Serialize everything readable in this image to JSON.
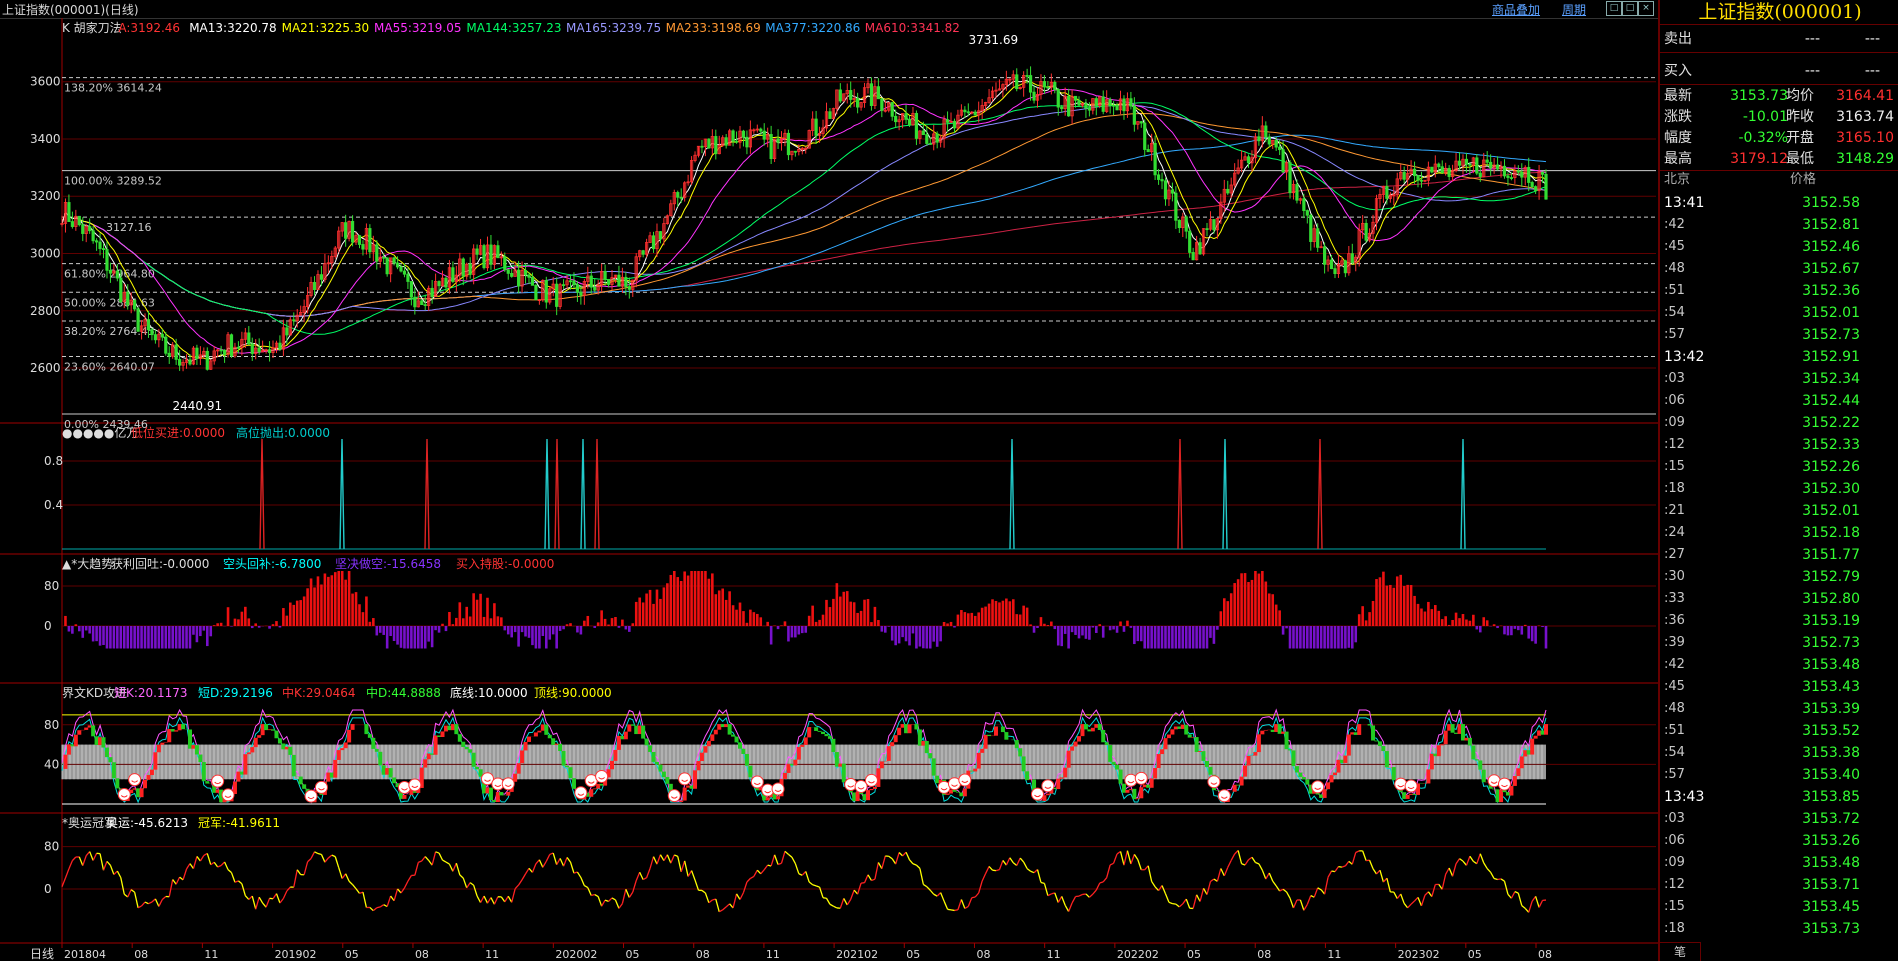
{
  "window": {
    "title": "上证指数(000001)(日线)",
    "links": [
      "商品叠加",
      "周期"
    ],
    "win_buttons": [
      "□",
      "□",
      "×"
    ]
  },
  "colors": {
    "up": "#ff3030",
    "down": "#33dd33",
    "grid": "#600000",
    "ma13": "#ffffff",
    "ma21": "#ffff00",
    "ma55": "#ff33ff",
    "ma144": "#00ff66",
    "ma165": "#8888ff",
    "ma233": "#ff9933",
    "ma377": "#33aaff",
    "ma610": "#cc2244"
  },
  "main_panel": {
    "legend": [
      {
        "text": "K  胡家刀法",
        "color": "#dddddd"
      },
      {
        "text": "A:3192.46",
        "color": "#ff3333"
      },
      {
        "text": "MA13:3220.78",
        "color": "#ffffff"
      },
      {
        "text": "MA21:3225.30",
        "color": "#ffff00"
      },
      {
        "text": "MA55:3219.05",
        "color": "#ff33ff"
      },
      {
        "text": "MA144:3257.23",
        "color": "#00ff66"
      },
      {
        "text": "MA165:3239.75",
        "color": "#9999ff"
      },
      {
        "text": "MA233:3198.69",
        "color": "#ff9933"
      },
      {
        "text": "MA377:3220.86",
        "color": "#33aaff"
      },
      {
        "text": "MA610:3341.82",
        "color": "#ff3355"
      }
    ],
    "y_ticks": [
      "3600",
      "3400",
      "3200",
      "3000",
      "2800",
      "2600"
    ],
    "fib_levels": [
      {
        "label": "138.20% 3614.24",
        "value": 3614.24
      },
      {
        "label": "100.00% 3289.52",
        "value": 3289.52
      },
      {
        "label": "3127.16",
        "value": 3127.16
      },
      {
        "label": "61.80% 2964.80",
        "value": 2964.8
      },
      {
        "label": "50.00% 2864.63",
        "value": 2864.63
      },
      {
        "label": "38.20% 2764.45",
        "value": 2764.45
      },
      {
        "label": "23.60% 2640.07",
        "value": 2640.07
      },
      {
        "label": "0.00% 2439.46",
        "value": 2439.46
      }
    ],
    "high_label": "3731.69",
    "low_label": "2440.91"
  },
  "panel2": {
    "legend": [
      {
        "text": "●●●●●亿万",
        "color": "#dddddd"
      },
      {
        "text": "低位买进:0.0000",
        "color": "#ff3333"
      },
      {
        "text": "高位抛出:0.0000",
        "color": "#00cccc"
      }
    ],
    "y_ticks": [
      "0.8",
      "0.4"
    ]
  },
  "panel3": {
    "legend": [
      {
        "text": "▲*大趋势",
        "color": "#dddddd"
      },
      {
        "text": "获利回吐:-0.0000",
        "color": "#dddddd"
      },
      {
        "text": "空头回补:-6.7800",
        "color": "#00ffff"
      },
      {
        "text": "坚决做空:-15.6458",
        "color": "#8833ff"
      },
      {
        "text": "买入持股:-0.0000",
        "color": "#ff3333"
      }
    ],
    "y_ticks": [
      "80",
      "0"
    ]
  },
  "panel4": {
    "legend": [
      {
        "text": "界文KD攻进",
        "color": "#dddddd"
      },
      {
        "text": "短K:20.1173",
        "color": "#ff66ff"
      },
      {
        "text": "短D:29.2196",
        "color": "#00ffff"
      },
      {
        "text": "中K:29.0464",
        "color": "#ff3333"
      },
      {
        "text": "中D:44.8888",
        "color": "#33ff33"
      },
      {
        "text": "底线:10.0000",
        "color": "#ffffff"
      },
      {
        "text": "顶线:90.0000",
        "color": "#ffff00"
      }
    ],
    "y_ticks": [
      "80",
      "40"
    ]
  },
  "panel5": {
    "legend": [
      {
        "text": "*奥运冠军",
        "color": "#dddddd"
      },
      {
        "text": "奥运:-45.6213",
        "color": "#ffffff"
      },
      {
        "text": "冠军:-41.9611",
        "color": "#ffff00"
      }
    ],
    "y_ticks": [
      "80",
      "0"
    ]
  },
  "x_axis": {
    "period_label": "日线",
    "ticks": [
      "201804",
      "08",
      "11",
      "201902",
      "05",
      "08",
      "11",
      "202002",
      "05",
      "08",
      "11",
      "202102",
      "05",
      "08",
      "11",
      "202202",
      "05",
      "08",
      "11",
      "202302",
      "05",
      "08"
    ]
  },
  "quote": {
    "title": "上证指数(000001)",
    "sell": {
      "label": "卖出",
      "v1": "---",
      "v2": "---"
    },
    "buy": {
      "label": "买入",
      "v1": "---",
      "v2": "---"
    },
    "rows": [
      {
        "l1": "最新",
        "v1": "3153.73",
        "c1": "#33ff33",
        "l2": "均价",
        "v2": "3164.41",
        "c2": "#ff3030"
      },
      {
        "l1": "涨跌",
        "v1": "-10.01",
        "c1": "#33ff33",
        "l2": "昨收",
        "v2": "3163.74",
        "c2": "#eeeeee"
      },
      {
        "l1": "幅度",
        "v1": "-0.32%",
        "c1": "#33ff33",
        "l2": "开盘",
        "v2": "3165.10",
        "c2": "#ff3030"
      },
      {
        "l1": "最高",
        "v1": "3179.12",
        "c1": "#ff3030",
        "l2": "最低",
        "v2": "3148.29",
        "c2": "#33ff33"
      }
    ],
    "tick_header": {
      "time": "北京",
      "price": "价格"
    },
    "ticks": [
      {
        "t": "13:41",
        "p": "3152.58"
      },
      {
        "t": ":42",
        "p": "3152.81"
      },
      {
        "t": ":45",
        "p": "3152.46"
      },
      {
        "t": ":48",
        "p": "3152.67"
      },
      {
        "t": ":51",
        "p": "3152.36"
      },
      {
        "t": ":54",
        "p": "3152.01"
      },
      {
        "t": ":57",
        "p": "3152.73"
      },
      {
        "t": "13:42",
        "p": "3152.91"
      },
      {
        "t": ":03",
        "p": "3152.34"
      },
      {
        "t": ":06",
        "p": "3152.44"
      },
      {
        "t": ":09",
        "p": "3152.22"
      },
      {
        "t": ":12",
        "p": "3152.33"
      },
      {
        "t": ":15",
        "p": "3152.26"
      },
      {
        "t": ":18",
        "p": "3152.30"
      },
      {
        "t": ":21",
        "p": "3152.01"
      },
      {
        "t": ":24",
        "p": "3152.18"
      },
      {
        "t": ":27",
        "p": "3151.77"
      },
      {
        "t": ":30",
        "p": "3152.79"
      },
      {
        "t": ":33",
        "p": "3152.80"
      },
      {
        "t": ":36",
        "p": "3153.19"
      },
      {
        "t": ":39",
        "p": "3152.73"
      },
      {
        "t": ":42",
        "p": "3153.48"
      },
      {
        "t": ":45",
        "p": "3153.43"
      },
      {
        "t": ":48",
        "p": "3153.39"
      },
      {
        "t": ":51",
        "p": "3153.52"
      },
      {
        "t": ":54",
        "p": "3153.38"
      },
      {
        "t": ":57",
        "p": "3153.40"
      },
      {
        "t": "13:43",
        "p": "3153.85"
      },
      {
        "t": ":03",
        "p": "3153.72"
      },
      {
        "t": ":06",
        "p": "3153.26"
      },
      {
        "t": ":09",
        "p": "3153.48"
      },
      {
        "t": ":12",
        "p": "3153.71"
      },
      {
        "t": ":15",
        "p": "3153.45"
      },
      {
        "t": ":18",
        "p": "3153.73"
      }
    ],
    "bottom_tab": "笔"
  },
  "chart_data": {
    "type": "line",
    "title": "上证指数(000001)(日线)",
    "x": [
      "201804",
      "08",
      "11",
      "201902",
      "05",
      "08",
      "11",
      "202002",
      "05",
      "08",
      "11",
      "202102",
      "05",
      "08",
      "11",
      "202202",
      "05",
      "08",
      "11",
      "202302",
      "05",
      "08"
    ],
    "series": [
      {
        "name": "K",
        "values": [
          3150,
          2800,
          2600,
          2700,
          3050,
          2900,
          2950,
          2900,
          2850,
          3400,
          3350,
          3550,
          3450,
          3500,
          3580,
          3500,
          3050,
          3400,
          2950,
          3250,
          3350,
          3200
        ]
      }
    ],
    "ylim": [
      2439.46,
      3731.69
    ]
  }
}
